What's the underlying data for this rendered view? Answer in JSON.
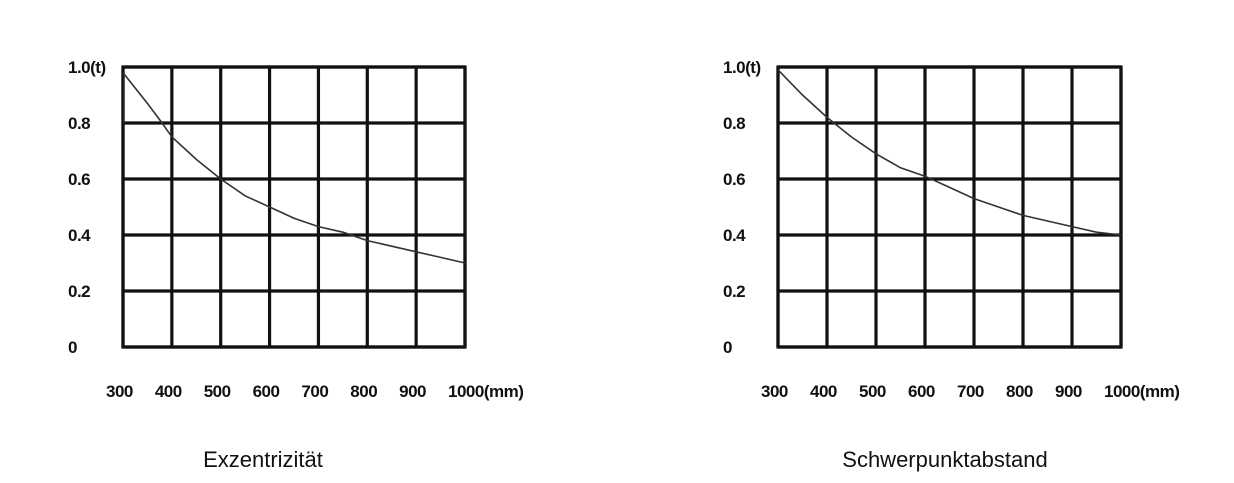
{
  "chart_data": [
    {
      "type": "line",
      "title": "Exzentrizität",
      "x_tick_labels": [
        "300",
        "400",
        "500",
        "600",
        "700",
        "800",
        "900",
        "1000(mm)"
      ],
      "y_tick_labels": [
        "0",
        "0.2",
        "0.4",
        "0.6",
        "0.8",
        "1.0(t)"
      ],
      "xlim": [
        300,
        1000
      ],
      "ylim": [
        0,
        1.0
      ],
      "grid": true,
      "x": [
        300,
        350,
        380,
        400,
        450,
        500,
        550,
        600,
        650,
        700,
        750,
        800,
        850,
        900,
        950,
        1000
      ],
      "y": [
        0.98,
        0.87,
        0.8,
        0.75,
        0.67,
        0.6,
        0.54,
        0.5,
        0.46,
        0.43,
        0.41,
        0.38,
        0.36,
        0.34,
        0.32,
        0.3
      ]
    },
    {
      "type": "line",
      "title": "Schwerpunktabstand",
      "x_tick_labels": [
        "300",
        "400",
        "500",
        "600",
        "700",
        "800",
        "900",
        "1000(mm)"
      ],
      "y_tick_labels": [
        "0",
        "0.2",
        "0.4",
        "0.6",
        "0.8",
        "1.0(t)"
      ],
      "xlim": [
        300,
        1000
      ],
      "ylim": [
        0,
        1.0
      ],
      "grid": true,
      "x": [
        300,
        350,
        400,
        450,
        500,
        550,
        600,
        650,
        700,
        750,
        800,
        850,
        900,
        950,
        1000
      ],
      "y": [
        0.99,
        0.9,
        0.82,
        0.75,
        0.69,
        0.64,
        0.61,
        0.57,
        0.53,
        0.5,
        0.47,
        0.45,
        0.43,
        0.41,
        0.4
      ]
    }
  ]
}
